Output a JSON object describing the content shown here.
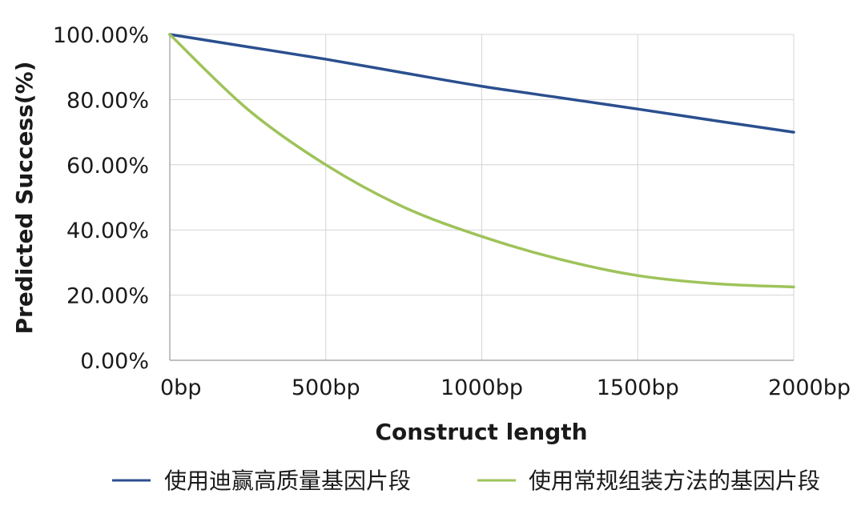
{
  "chart_data": {
    "type": "line",
    "xlabel": "Construct length",
    "ylabel": "Predicted Success(%)",
    "x": [
      0,
      250,
      500,
      750,
      1000,
      1250,
      1500,
      1750,
      2000
    ],
    "x_tick_labels": [
      "0bp",
      "500bp",
      "1000bp",
      "1500bp",
      "2000bp"
    ],
    "x_ticks": [
      0,
      500,
      1000,
      1500,
      2000
    ],
    "xlim": [
      0,
      2000
    ],
    "y_tick_labels": [
      "0.00%",
      "20.00%",
      "40.00%",
      "60.00%",
      "80.00%",
      "100.00%"
    ],
    "y_ticks": [
      0,
      20,
      40,
      60,
      80,
      100
    ],
    "ylim": [
      0,
      100
    ],
    "grid": true,
    "legend_position": "bottom",
    "series": [
      {
        "name": "使用迪赢高质量基因片段",
        "color": "#2b4f8f",
        "values": [
          100,
          96.2,
          92.4,
          88.2,
          84.1,
          80.6,
          77.1,
          73.5,
          70.0
        ]
      },
      {
        "name": "使用常规组装方法的基因片段",
        "color": "#9ec35a",
        "values": [
          100,
          77,
          60,
          47,
          38,
          31,
          26,
          23.5,
          22.5
        ]
      }
    ]
  }
}
